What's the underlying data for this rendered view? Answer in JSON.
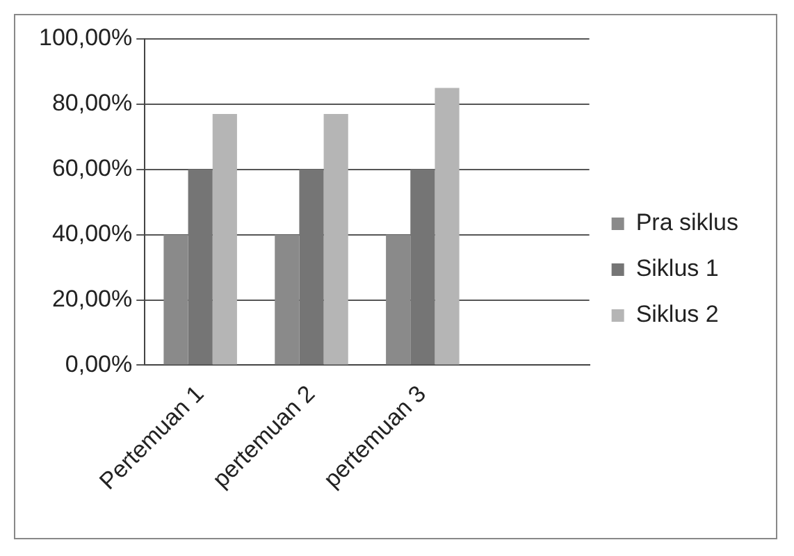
{
  "chart_data": {
    "type": "bar",
    "categories": [
      "Pertemuan 1",
      "pertemuan 2",
      "pertemuan 3",
      null
    ],
    "series": [
      {
        "name": "Pra siklus",
        "color": "#8a8a8a",
        "values": [
          40,
          40,
          40,
          null
        ]
      },
      {
        "name": "Siklus 1",
        "color": "#757575",
        "values": [
          60,
          60,
          60,
          null
        ]
      },
      {
        "name": "Siklus 2",
        "color": "#b5b5b5",
        "values": [
          77,
          77,
          85,
          null
        ]
      }
    ],
    "ylim": [
      0,
      100
    ],
    "yticks": [
      {
        "value": 0,
        "label": "0,00%"
      },
      {
        "value": 20,
        "label": "20,00%"
      },
      {
        "value": 40,
        "label": "40,00%"
      },
      {
        "value": 60,
        "label": "60,00%"
      },
      {
        "value": 80,
        "label": "80,00%"
      },
      {
        "value": 100,
        "label": "100,00%"
      }
    ],
    "grid": "y",
    "legend": "right"
  }
}
